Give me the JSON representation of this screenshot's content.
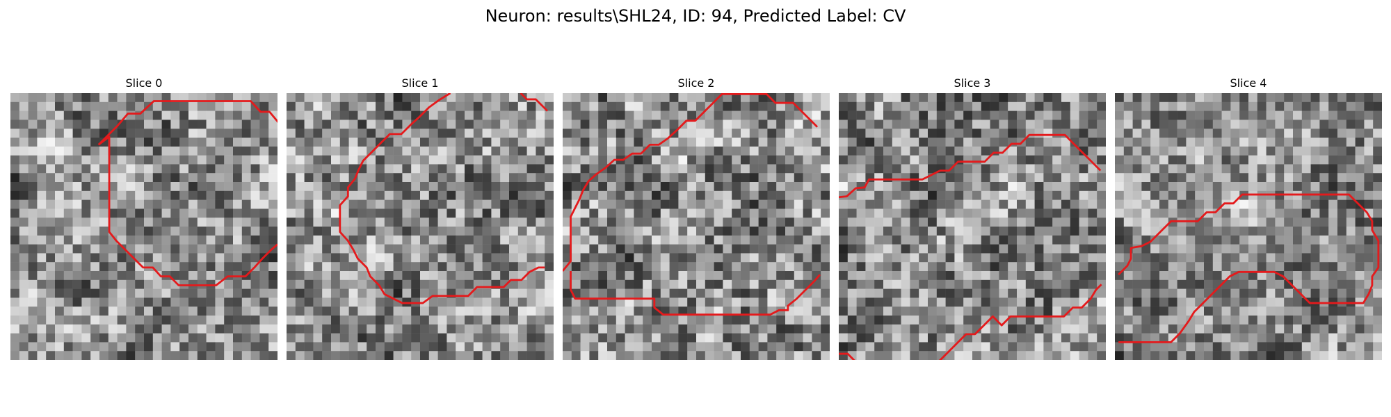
{
  "figure": {
    "title": "Neuron: results\\SHL24, ID: 94, Predicted Label: CV"
  },
  "colors": {
    "contour": "#e41a1c",
    "background": "#ffffff"
  },
  "slices": [
    {
      "label": "Slice 0",
      "contours": [
        [
          [
            23.2,
            0.9
          ],
          [
            27.0,
            0.9
          ],
          [
            28.1,
            2.1
          ],
          [
            29.1,
            2.1
          ],
          [
            30.1,
            3.3
          ],
          [
            30.1,
            3.3
          ]
        ],
        [
          [
            9.9,
            5.8
          ],
          [
            12.0,
            3.7
          ],
          [
            13.2,
            2.3
          ],
          [
            14.6,
            2.3
          ],
          [
            16.1,
            0.9
          ],
          [
            17.6,
            0.9
          ],
          [
            18.2,
            0.9
          ],
          [
            23.2,
            0.9
          ]
        ],
        [
          [
            9.9,
            5.8
          ],
          [
            11.1,
            4.9
          ],
          [
            11.1,
            6.0
          ],
          [
            11.1,
            6.6
          ],
          [
            11.1,
            7.6
          ],
          [
            11.1,
            8.6
          ],
          [
            11.1,
            9.6
          ],
          [
            11.1,
            10.6
          ],
          [
            11.1,
            11.6
          ],
          [
            11.1,
            12.6
          ],
          [
            11.1,
            13.6
          ],
          [
            11.1,
            14.6
          ],
          [
            11.1,
            15.6
          ],
          [
            11.1,
            15.6
          ],
          [
            11.9,
            16.6
          ],
          [
            12.9,
            17.6
          ],
          [
            13.9,
            18.6
          ],
          [
            14.9,
            19.6
          ],
          [
            16.0,
            19.6
          ],
          [
            16.9,
            20.6
          ],
          [
            17.9,
            20.6
          ],
          [
            18.9,
            21.6
          ],
          [
            19.9,
            21.6
          ],
          [
            20.9,
            21.6
          ],
          [
            22.1,
            21.6
          ],
          [
            23.1,
            21.6
          ],
          [
            24.4,
            20.6
          ],
          [
            25.3,
            20.6
          ],
          [
            26.4,
            20.6
          ],
          [
            27.4,
            19.6
          ],
          [
            28.3,
            18.6
          ],
          [
            29.3,
            17.6
          ],
          [
            30.0,
            17.0
          ]
        ]
      ]
    },
    {
      "label": "Slice 1",
      "contours": [
        [
          [
            18.4,
            0.0
          ],
          [
            17.1,
            0.8
          ],
          [
            16.0,
            1.6
          ],
          [
            15.0,
            2.6
          ],
          [
            13.9,
            3.6
          ],
          [
            12.9,
            4.6
          ],
          [
            11.6,
            4.6
          ],
          [
            10.6,
            5.6
          ],
          [
            9.6,
            6.6
          ],
          [
            8.6,
            7.6
          ],
          [
            8.1,
            8.6
          ],
          [
            7.7,
            9.6
          ],
          [
            6.9,
            10.6
          ],
          [
            6.9,
            11.6
          ],
          [
            6.0,
            12.6
          ],
          [
            6.0,
            13.6
          ],
          [
            6.0,
            14.6
          ],
          [
            6.0,
            15.6
          ],
          [
            6.9,
            16.6
          ],
          [
            7.5,
            17.6
          ],
          [
            8.0,
            18.6
          ],
          [
            9.0,
            19.6
          ],
          [
            9.4,
            20.6
          ],
          [
            10.4,
            21.6
          ],
          [
            11.0,
            22.6
          ],
          [
            12.0,
            23.1
          ],
          [
            13.0,
            23.6
          ],
          [
            14.1,
            23.6
          ],
          [
            15.3,
            23.6
          ],
          [
            16.4,
            22.8
          ],
          [
            17.4,
            22.8
          ],
          [
            18.4,
            22.8
          ],
          [
            19.4,
            22.8
          ],
          [
            20.4,
            22.8
          ],
          [
            21.4,
            21.8
          ],
          [
            22.4,
            21.8
          ],
          [
            23.4,
            21.8
          ],
          [
            24.4,
            21.8
          ],
          [
            25.2,
            21.0
          ],
          [
            26.4,
            21.0
          ],
          [
            27.3,
            20.1
          ],
          [
            28.3,
            19.6
          ],
          [
            29.0,
            19.6
          ]
        ],
        [
          [
            26.3,
            0.0
          ],
          [
            27.0,
            0.7
          ],
          [
            28.0,
            0.7
          ],
          [
            29.0,
            1.7
          ],
          [
            29.3,
            2.0
          ]
        ]
      ]
    },
    {
      "label": "Slice 2",
      "contours": [
        [
          [
            0.0,
            20.0
          ],
          [
            0.9,
            18.9
          ],
          [
            0.9,
            17.9
          ],
          [
            0.9,
            16.9
          ],
          [
            0.9,
            15.9
          ],
          [
            0.9,
            14.9
          ],
          [
            0.9,
            13.9
          ],
          [
            1.4,
            12.9
          ],
          [
            1.9,
            11.9
          ],
          [
            2.3,
            10.9
          ],
          [
            2.9,
            9.9
          ],
          [
            3.8,
            9.1
          ],
          [
            4.8,
            8.4
          ],
          [
            5.8,
            7.5
          ],
          [
            6.8,
            7.5
          ],
          [
            7.8,
            6.8
          ],
          [
            8.8,
            6.8
          ],
          [
            9.8,
            5.8
          ],
          [
            10.8,
            5.8
          ],
          [
            11.8,
            5.1
          ],
          [
            12.9,
            4.1
          ],
          [
            13.9,
            3.1
          ],
          [
            14.9,
            3.1
          ],
          [
            15.9,
            2.1
          ],
          [
            16.9,
            1.1
          ],
          [
            17.9,
            0.1
          ],
          [
            18.9,
            0.1
          ],
          [
            19.9,
            0.1
          ],
          [
            20.9,
            0.1
          ],
          [
            21.9,
            0.1
          ],
          [
            22.9,
            0.1
          ],
          [
            23.9,
            1.1
          ],
          [
            24.9,
            1.1
          ],
          [
            25.9,
            1.1
          ],
          [
            26.9,
            2.1
          ],
          [
            27.9,
            3.1
          ],
          [
            28.6,
            3.8
          ]
        ],
        [
          [
            0.9,
            20.0
          ],
          [
            0.9,
            21.1
          ],
          [
            0.9,
            22.1
          ],
          [
            1.4,
            23.1
          ],
          [
            2.3,
            23.1
          ],
          [
            3.3,
            23.1
          ],
          [
            4.3,
            23.1
          ],
          [
            5.3,
            23.1
          ],
          [
            6.3,
            23.1
          ],
          [
            7.3,
            23.1
          ],
          [
            8.3,
            23.1
          ],
          [
            9.3,
            23.1
          ],
          [
            10.3,
            23.1
          ],
          [
            10.3,
            24.1
          ],
          [
            11.3,
            24.9
          ],
          [
            12.3,
            24.9
          ],
          [
            13.3,
            24.9
          ],
          [
            14.3,
            24.9
          ],
          [
            15.3,
            24.9
          ],
          [
            16.3,
            24.9
          ],
          [
            17.3,
            24.9
          ],
          [
            18.3,
            24.9
          ],
          [
            19.3,
            24.9
          ],
          [
            20.3,
            24.9
          ],
          [
            21.3,
            24.9
          ],
          [
            22.3,
            24.9
          ],
          [
            23.3,
            24.9
          ],
          [
            24.3,
            24.4
          ],
          [
            25.3,
            24.4
          ],
          [
            25.3,
            23.9
          ],
          [
            26.3,
            23.1
          ],
          [
            27.3,
            22.1
          ],
          [
            28.3,
            21.1
          ],
          [
            28.9,
            20.4
          ]
        ]
      ]
    },
    {
      "label": "Slice 3",
      "contours": [
        [
          [
            0.0,
            11.7
          ],
          [
            0.9,
            11.6
          ],
          [
            1.9,
            10.7
          ],
          [
            2.9,
            10.6
          ],
          [
            3.4,
            9.7
          ],
          [
            4.4,
            9.7
          ],
          [
            5.4,
            9.7
          ],
          [
            6.4,
            9.7
          ],
          [
            7.4,
            9.7
          ],
          [
            8.4,
            9.7
          ],
          [
            9.4,
            9.7
          ],
          [
            10.4,
            9.2
          ],
          [
            11.4,
            8.7
          ],
          [
            12.4,
            8.7
          ],
          [
            13.4,
            7.7
          ],
          [
            14.4,
            7.7
          ],
          [
            15.4,
            7.7
          ],
          [
            16.4,
            7.7
          ],
          [
            17.4,
            6.7
          ],
          [
            18.4,
            6.7
          ],
          [
            19.4,
            5.7
          ],
          [
            20.4,
            5.7
          ],
          [
            21.4,
            4.7
          ],
          [
            22.4,
            4.7
          ],
          [
            23.4,
            4.7
          ],
          [
            24.4,
            4.7
          ],
          [
            25.4,
            4.7
          ],
          [
            26.4,
            5.7
          ],
          [
            27.4,
            6.7
          ],
          [
            28.4,
            7.7
          ],
          [
            29.4,
            8.7
          ]
        ],
        [
          [
            11.3,
            30.1
          ],
          [
            12.3,
            29.1
          ],
          [
            13.3,
            28.1
          ],
          [
            14.3,
            27.1
          ],
          [
            15.3,
            27.1
          ],
          [
            16.3,
            26.1
          ],
          [
            17.3,
            25.1
          ],
          [
            18.3,
            26.1
          ],
          [
            19.3,
            25.1
          ],
          [
            20.3,
            25.1
          ],
          [
            21.3,
            25.1
          ],
          [
            22.3,
            25.1
          ],
          [
            23.3,
            25.1
          ],
          [
            24.3,
            25.1
          ],
          [
            25.3,
            25.1
          ],
          [
            26.3,
            24.1
          ],
          [
            27.3,
            24.1
          ],
          [
            28.3,
            23.1
          ],
          [
            28.9,
            22.1
          ],
          [
            29.5,
            21.5
          ]
        ],
        [
          [
            0.0,
            29.3
          ],
          [
            1.0,
            29.3
          ],
          [
            1.8,
            30.1
          ]
        ]
      ]
    },
    {
      "label": "Slice 4",
      "contours": [
        [
          [
            0.4,
            20.4
          ],
          [
            1.4,
            19.4
          ],
          [
            1.8,
            18.6
          ],
          [
            1.8,
            17.4
          ],
          [
            3.0,
            17.2
          ],
          [
            4.0,
            16.7
          ],
          [
            5.3,
            15.4
          ],
          [
            6.3,
            14.4
          ],
          [
            7.3,
            14.4
          ],
          [
            8.3,
            14.4
          ],
          [
            9.3,
            14.4
          ],
          [
            10.3,
            13.4
          ],
          [
            11.3,
            13.4
          ],
          [
            12.3,
            12.4
          ],
          [
            13.3,
            12.4
          ],
          [
            14.3,
            11.4
          ],
          [
            15.3,
            11.4
          ],
          [
            16.3,
            11.4
          ],
          [
            17.3,
            11.4
          ],
          [
            18.3,
            11.4
          ],
          [
            19.3,
            11.4
          ],
          [
            20.3,
            11.4
          ],
          [
            21.3,
            11.4
          ],
          [
            22.3,
            11.4
          ],
          [
            23.3,
            11.4
          ],
          [
            24.3,
            11.4
          ],
          [
            25.3,
            11.4
          ],
          [
            26.3,
            11.4
          ],
          [
            27.3,
            12.4
          ],
          [
            28.3,
            13.4
          ],
          [
            28.9,
            14.4
          ],
          [
            28.9,
            15.4
          ],
          [
            29.6,
            16.6
          ],
          [
            29.6,
            17.6
          ],
          [
            29.6,
            18.6
          ],
          [
            29.6,
            19.6
          ],
          [
            28.9,
            20.6
          ],
          [
            28.9,
            21.6
          ],
          [
            28.5,
            22.6
          ],
          [
            27.9,
            23.6
          ],
          [
            26.9,
            23.6
          ],
          [
            25.9,
            23.6
          ],
          [
            24.9,
            23.6
          ],
          [
            23.9,
            23.6
          ],
          [
            22.9,
            23.6
          ],
          [
            21.9,
            23.6
          ],
          [
            20.9,
            22.6
          ],
          [
            19.9,
            21.6
          ],
          [
            18.9,
            20.6
          ],
          [
            17.9,
            20.1
          ],
          [
            16.9,
            20.1
          ],
          [
            15.9,
            20.1
          ],
          [
            14.9,
            20.1
          ],
          [
            13.9,
            20.1
          ],
          [
            12.9,
            20.6
          ],
          [
            11.9,
            21.6
          ],
          [
            10.9,
            22.6
          ],
          [
            9.9,
            23.6
          ],
          [
            8.9,
            24.6
          ],
          [
            8.3,
            25.6
          ],
          [
            7.3,
            27.0
          ],
          [
            6.3,
            28.0
          ],
          [
            5.3,
            28.0
          ],
          [
            4.3,
            28.0
          ],
          [
            3.3,
            28.0
          ],
          [
            2.3,
            28.0
          ],
          [
            1.3,
            28.0
          ],
          [
            0.4,
            28.0
          ]
        ]
      ]
    }
  ]
}
